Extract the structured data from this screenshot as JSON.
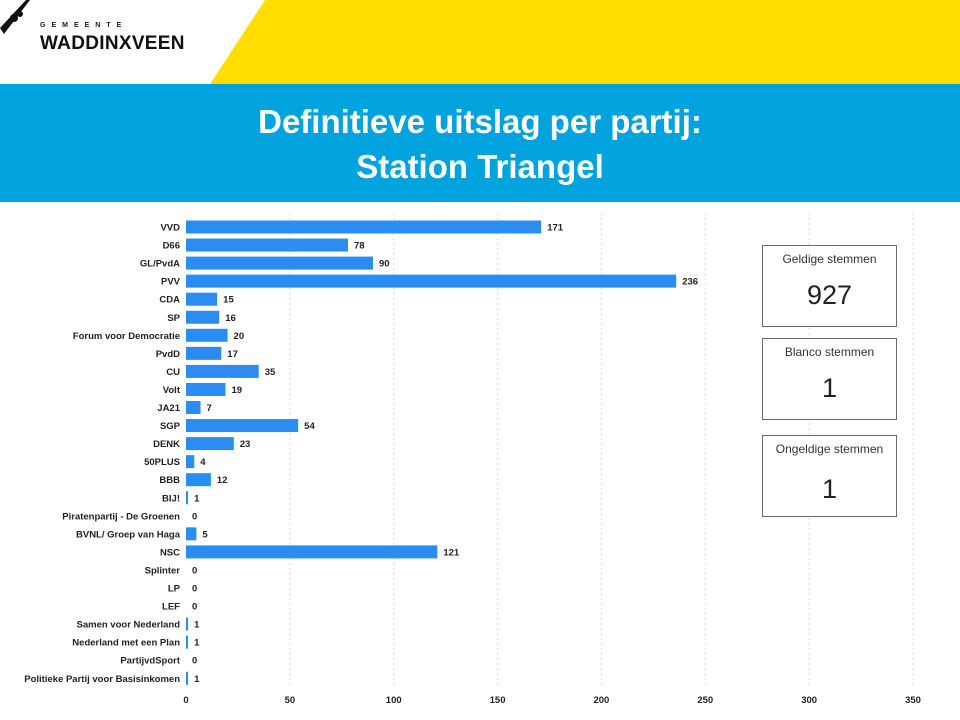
{
  "logo": {
    "municipality_word": "GEMEENTE",
    "name": "WADDINXVEEN"
  },
  "title": {
    "line1": "Definitieve uitslag per partij:",
    "line2": "Station Triangel"
  },
  "colors": {
    "header_yellow": "#ffdd00",
    "title_band": "#00a3dd",
    "bar": "#2b8cf2"
  },
  "cards": [
    {
      "label": "Geldige stemmen",
      "value": "927"
    },
    {
      "label": "Blanco stemmen",
      "value": "1"
    },
    {
      "label": "Ongeldige stemmen",
      "value": "1"
    }
  ],
  "chart_data": {
    "type": "bar",
    "orientation": "horizontal",
    "categories": [
      "VVD",
      "D66",
      "GL/PvdA",
      "PVV",
      "CDA",
      "SP",
      "Forum voor Democratie",
      "PvdD",
      "CU",
      "Volt",
      "JA21",
      "SGP",
      "DENK",
      "50PLUS",
      "BBB",
      "BIJ!",
      "Piratenpartij - De Groenen",
      "BVNL/ Groep van Haga",
      "NSC",
      "Splinter",
      "LP",
      "LEF",
      "Samen voor Nederland",
      "Nederland met een Plan",
      "PartijvdSport",
      "Politieke Partij voor Basisinkomen"
    ],
    "values": [
      171,
      78,
      90,
      236,
      15,
      16,
      20,
      17,
      35,
      19,
      7,
      54,
      23,
      4,
      12,
      1,
      0,
      5,
      121,
      0,
      0,
      0,
      1,
      1,
      0,
      1
    ],
    "x_ticks": [
      0,
      50,
      100,
      150,
      200,
      250,
      300,
      350
    ],
    "xlim": [
      0,
      350
    ],
    "grid": true
  }
}
